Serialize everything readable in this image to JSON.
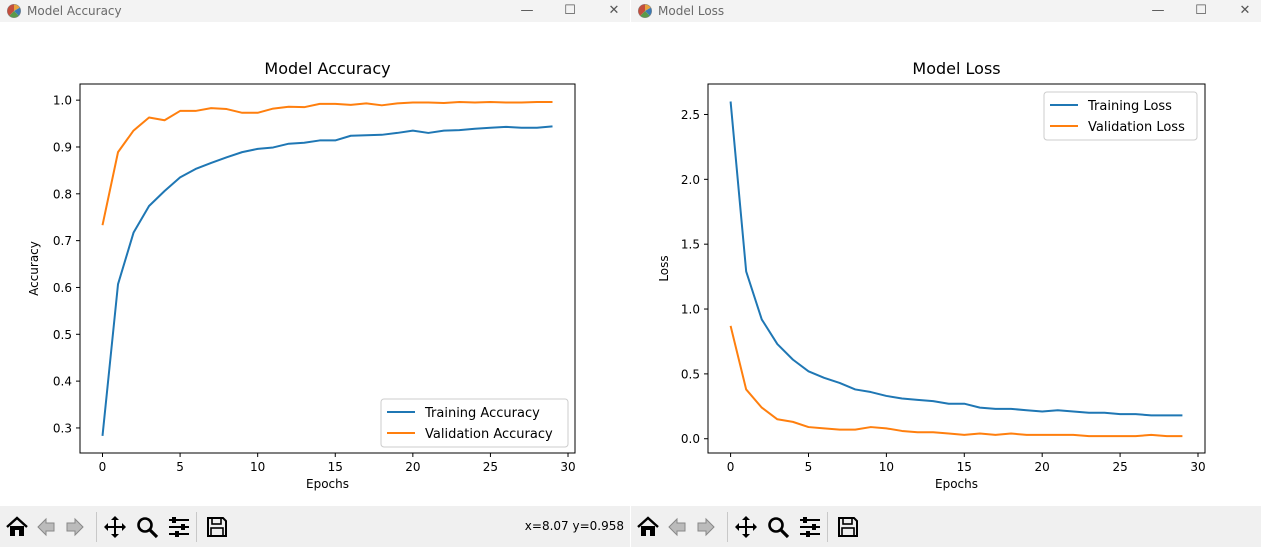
{
  "windows": [
    {
      "id": "acc",
      "title": "Model Accuracy",
      "controls": {
        "minimize": "—",
        "maximize": "☐",
        "close": "✕"
      },
      "coords_text": "x=8.07 y=0.958",
      "chart_data": {
        "type": "line",
        "title": "Model Accuracy",
        "xlabel": "Epochs",
        "ylabel": "Accuracy",
        "xlim": [
          -1.45,
          30.45
        ],
        "ylim": [
          0.2465,
          1.0345
        ],
        "xticks": [
          0,
          5,
          10,
          15,
          20,
          25,
          30
        ],
        "yticks": [
          0.3,
          0.4,
          0.5,
          0.6,
          0.7,
          0.8,
          0.9,
          1.0
        ],
        "ytick_decimals": 1,
        "legend": "lower right",
        "grid": false,
        "x": [
          0,
          1,
          2,
          3,
          4,
          5,
          6,
          7,
          8,
          9,
          10,
          11,
          12,
          13,
          14,
          15,
          16,
          17,
          18,
          19,
          20,
          21,
          22,
          23,
          24,
          25,
          26,
          27,
          28,
          29
        ],
        "series": [
          {
            "name": "Training Accuracy",
            "color": "#1f77b4",
            "values": [
              0.283,
              0.607,
              0.717,
              0.774,
              0.806,
              0.835,
              0.853,
              0.866,
              0.878,
              0.889,
              0.896,
              0.899,
              0.907,
              0.909,
              0.914,
              0.914,
              0.924,
              0.925,
              0.926,
              0.93,
              0.935,
              0.93,
              0.935,
              0.936,
              0.939,
              0.941,
              0.943,
              0.941,
              0.941,
              0.944
            ]
          },
          {
            "name": "Validation Accuracy",
            "color": "#ff7f0e",
            "values": [
              0.733,
              0.889,
              0.935,
              0.963,
              0.957,
              0.977,
              0.977,
              0.983,
              0.981,
              0.973,
              0.973,
              0.982,
              0.986,
              0.985,
              0.992,
              0.992,
              0.99,
              0.993,
              0.989,
              0.993,
              0.995,
              0.995,
              0.994,
              0.996,
              0.995,
              0.996,
              0.995,
              0.995,
              0.996,
              0.996
            ]
          }
        ]
      }
    },
    {
      "id": "loss",
      "title": "Model Loss",
      "controls": {
        "minimize": "—",
        "maximize": "☐",
        "close": "✕"
      },
      "coords_text": "",
      "chart_data": {
        "type": "line",
        "title": "Model Loss",
        "xlabel": "Epochs",
        "ylabel": "Loss",
        "xlim": [
          -1.45,
          30.45
        ],
        "ylim": [
          -0.11,
          2.735
        ],
        "xticks": [
          0,
          5,
          10,
          15,
          20,
          25,
          30
        ],
        "yticks": [
          0.0,
          0.5,
          1.0,
          1.5,
          2.0,
          2.5
        ],
        "ytick_decimals": 1,
        "legend": "upper right",
        "grid": false,
        "x": [
          0,
          1,
          2,
          3,
          4,
          5,
          6,
          7,
          8,
          9,
          10,
          11,
          12,
          13,
          14,
          15,
          16,
          17,
          18,
          19,
          20,
          21,
          22,
          23,
          24,
          25,
          26,
          27,
          28,
          29
        ],
        "series": [
          {
            "name": "Training Loss",
            "color": "#1f77b4",
            "values": [
              2.6,
              1.29,
              0.92,
              0.73,
              0.61,
              0.52,
              0.47,
              0.43,
              0.38,
              0.36,
              0.33,
              0.31,
              0.3,
              0.29,
              0.27,
              0.27,
              0.24,
              0.23,
              0.23,
              0.22,
              0.21,
              0.22,
              0.21,
              0.2,
              0.2,
              0.19,
              0.19,
              0.18,
              0.18,
              0.18
            ]
          },
          {
            "name": "Validation Loss",
            "color": "#ff7f0e",
            "values": [
              0.87,
              0.38,
              0.24,
              0.15,
              0.13,
              0.09,
              0.08,
              0.07,
              0.07,
              0.09,
              0.08,
              0.06,
              0.05,
              0.05,
              0.04,
              0.03,
              0.04,
              0.03,
              0.04,
              0.03,
              0.03,
              0.03,
              0.03,
              0.02,
              0.02,
              0.02,
              0.02,
              0.03,
              0.02,
              0.02
            ]
          }
        ]
      }
    }
  ],
  "toolbar": {
    "buttons": [
      {
        "name": "home-button",
        "icon": "home-icon",
        "tooltip": "Home"
      },
      {
        "name": "back-button",
        "icon": "arrow-left-icon",
        "tooltip": "Back"
      },
      {
        "name": "forward-button",
        "icon": "arrow-right-icon",
        "tooltip": "Forward"
      },
      {
        "name": "pan-button",
        "icon": "move-icon",
        "tooltip": "Pan"
      },
      {
        "name": "zoom-button",
        "icon": "magnifier-icon",
        "tooltip": "Zoom"
      },
      {
        "name": "configure-subplots-button",
        "icon": "sliders-icon",
        "tooltip": "Subplots"
      },
      {
        "name": "save-button",
        "icon": "floppy-disk-icon",
        "tooltip": "Save"
      }
    ]
  }
}
